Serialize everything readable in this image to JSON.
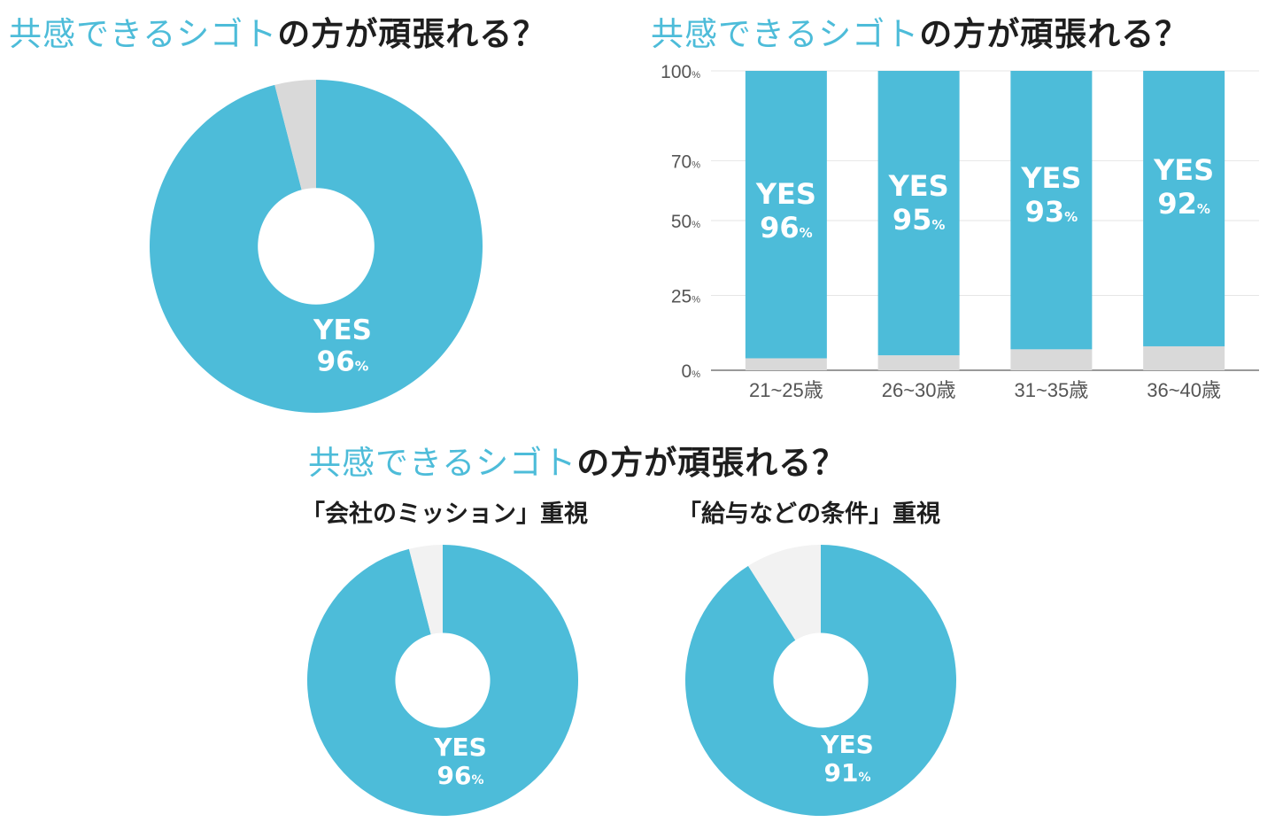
{
  "titles": {
    "top_left": {
      "accent": "共感できるシゴト",
      "rest": "の方が頑張れる？"
    },
    "top_right": {
      "accent": "共感できるシゴト",
      "rest": "の方が頑張れる？"
    },
    "bottom": {
      "accent": "共感できるシゴト",
      "rest": "の方が頑張れる？"
    }
  },
  "subtitles": {
    "mission": "「会社のミッション」重視",
    "salary": "「給与などの条件」重視"
  },
  "colors": {
    "yes": "#4dbcd9",
    "no_top": "#d9d9d9",
    "no_bottom": "#f2f2f2",
    "grid": "#e6e6e6"
  },
  "chart_data": [
    {
      "type": "pie",
      "label": "YES",
      "unit": "%",
      "slices": [
        {
          "name": "YES",
          "value": 96
        },
        {
          "name": "NO",
          "value": 4
        }
      ]
    },
    {
      "type": "bar",
      "stacked": true,
      "unit": "%",
      "categories": [
        "21~25歳",
        "26~30歳",
        "31~35歳",
        "36~40歳"
      ],
      "series": [
        {
          "name": "YES",
          "values": [
            96,
            95,
            93,
            92
          ]
        },
        {
          "name": "NO",
          "values": [
            4,
            5,
            7,
            8
          ]
        }
      ],
      "ylim": [
        0,
        100
      ],
      "yticks": [
        0,
        25,
        50,
        70,
        100
      ],
      "ytick_labels": [
        "0",
        "25",
        "50",
        "70",
        "100"
      ],
      "grid": true
    },
    {
      "type": "pie",
      "label": "YES",
      "unit": "%",
      "slices": [
        {
          "name": "YES",
          "value": 96
        },
        {
          "name": "NO",
          "value": 4
        }
      ]
    },
    {
      "type": "pie",
      "label": "YES",
      "unit": "%",
      "slices": [
        {
          "name": "YES",
          "value": 91
        },
        {
          "name": "NO",
          "value": 9
        }
      ]
    }
  ]
}
